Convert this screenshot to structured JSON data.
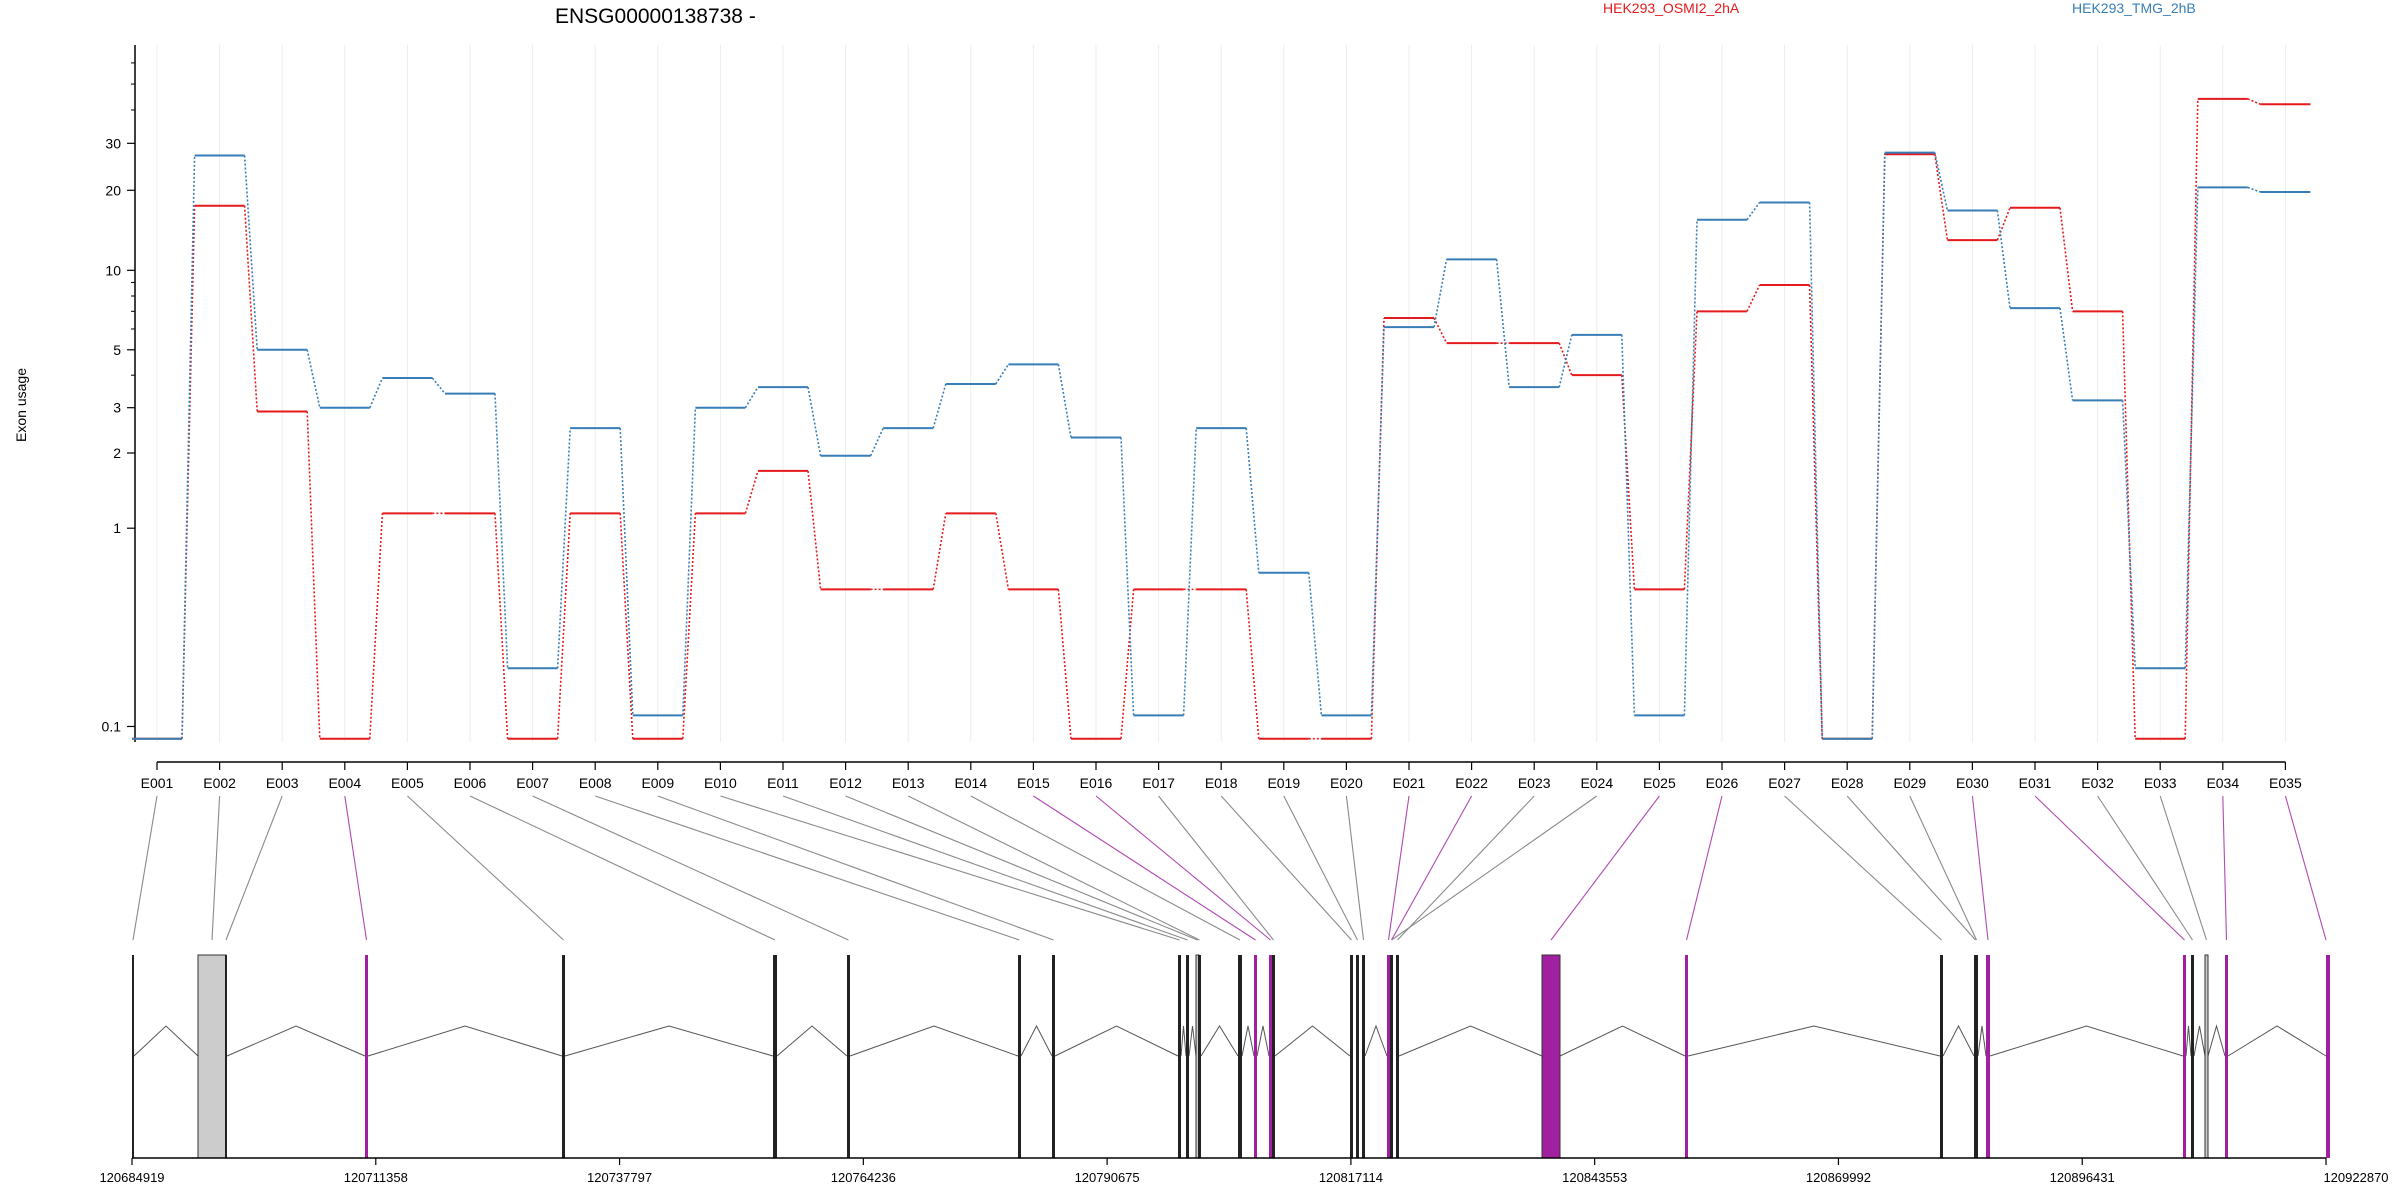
{
  "chart_data": {
    "type": "line",
    "title": "ENSG00000138738 -",
    "ylabel": "Exon usage",
    "y_scale": "log",
    "y_ticks": [
      0.1,
      1,
      2,
      3,
      5,
      10,
      20,
      30
    ],
    "categories": [
      "E001",
      "E002",
      "E003",
      "E004",
      "E005",
      "E006",
      "E007",
      "E008",
      "E009",
      "E010",
      "E011",
      "E012",
      "E013",
      "E014",
      "E015",
      "E016",
      "E017",
      "E018",
      "E019",
      "E020",
      "E021",
      "E022",
      "E023",
      "E024",
      "E025",
      "E026",
      "E027",
      "E028",
      "E029",
      "E030",
      "E031",
      "E032",
      "E033",
      "E034",
      "E035"
    ],
    "series": [
      {
        "name": "HEK293_OSMI2_2hA",
        "color": "#e41a1c",
        "values": [
          0.08,
          17.5,
          2.9,
          0.08,
          1.15,
          1.15,
          0.08,
          1.15,
          0.08,
          1.15,
          1.7,
          0.55,
          0.55,
          1.15,
          0.55,
          0.08,
          0.55,
          0.55,
          0.08,
          0.08,
          6.6,
          5.3,
          5.3,
          4.0,
          0.55,
          7.0,
          8.8,
          0.08,
          27.3,
          13.0,
          17.2,
          7.0,
          0.08,
          44.0,
          42.0
        ]
      },
      {
        "name": "HEK293_TMG_2hB",
        "color": "#377eb8",
        "values": [
          0.08,
          27.0,
          5.0,
          3.0,
          3.9,
          3.4,
          0.23,
          2.5,
          0.12,
          3.0,
          3.6,
          1.95,
          2.5,
          3.7,
          4.4,
          2.3,
          0.12,
          2.5,
          0.65,
          0.12,
          6.1,
          11.0,
          3.6,
          5.7,
          0.12,
          15.5,
          18.0,
          0.08,
          27.7,
          16.8,
          7.2,
          3.2,
          0.23,
          20.5,
          19.7
        ]
      }
    ],
    "genome_coordinates": [
      "120684919",
      "120711358",
      "120737797",
      "120764236",
      "120790675",
      "120817114",
      "120843553",
      "120869992",
      "120896431",
      "120922870"
    ]
  }
}
